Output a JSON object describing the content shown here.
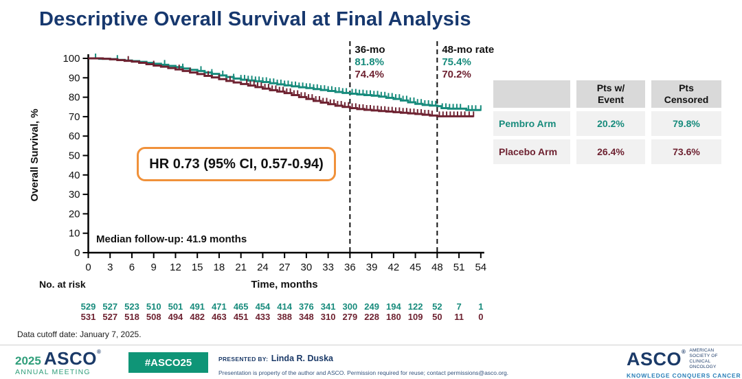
{
  "slide": {
    "title": "Descriptive Overall Survival at Final Analysis",
    "data_cutoff": "Data cutoff date: January 7, 2025."
  },
  "colors": {
    "navy": "#17386e",
    "teal": "#178b7c",
    "maroon": "#6e2231",
    "orange": "#f0913a",
    "badge_green": "#0f9577",
    "meeting_green": "#2f9e7a",
    "tagline_blue": "#2a7fb8",
    "table_header_gray": "#d9d9d9",
    "table_row_gray": "#f1f1f1"
  },
  "chart_data": {
    "type": "line",
    "subtype": "kaplan-meier-step",
    "title": "",
    "xlabel": "Time, months",
    "ylabel": "Overall Survival, %",
    "xlim": [
      0,
      54
    ],
    "ylim": [
      0,
      100
    ],
    "grid": false,
    "x_ticks": [
      0,
      3,
      6,
      9,
      12,
      15,
      18,
      21,
      24,
      27,
      30,
      33,
      36,
      39,
      42,
      45,
      48,
      51,
      54
    ],
    "y_ticks": [
      0,
      10,
      20,
      30,
      40,
      50,
      60,
      70,
      80,
      90,
      100
    ],
    "hr_label": "HR 0.73 (95% CI, 0.57-0.94)",
    "median_followup": "Median follow-up: 41.9 months",
    "no_at_risk_label": "No. at risk",
    "annotations": [
      {
        "time": 36,
        "title": "36-mo",
        "values": [
          {
            "series": "pembro",
            "text": "81.8%"
          },
          {
            "series": "placebo",
            "text": "74.4%"
          }
        ]
      },
      {
        "time": 48,
        "title": "48-mo rate",
        "values": [
          {
            "series": "pembro",
            "text": "75.4%"
          },
          {
            "series": "placebo",
            "text": "70.2%"
          }
        ]
      }
    ],
    "series": [
      {
        "name": "Pembro Arm",
        "key": "pembro",
        "color": "#178b7c",
        "rate_36mo": 81.8,
        "rate_48mo": 75.4,
        "points": [
          [
            0,
            100
          ],
          [
            1.5,
            99.8
          ],
          [
            3,
            99.6
          ],
          [
            4,
            99.2
          ],
          [
            5,
            98.9
          ],
          [
            6,
            98.6
          ],
          [
            7,
            98.2
          ],
          [
            8,
            97.7
          ],
          [
            9,
            97.2
          ],
          [
            10,
            96.7
          ],
          [
            11,
            96.1
          ],
          [
            12,
            95.5
          ],
          [
            13,
            94.8
          ],
          [
            14,
            94.1
          ],
          [
            15,
            93.5
          ],
          [
            16,
            92.7
          ],
          [
            17,
            92.0
          ],
          [
            18,
            91.2
          ],
          [
            19,
            90.4
          ],
          [
            20,
            89.6
          ],
          [
            21,
            89.0
          ],
          [
            22,
            88.6
          ],
          [
            23,
            88.2
          ],
          [
            24,
            87.8
          ],
          [
            25,
            87.2
          ],
          [
            26,
            86.6
          ],
          [
            27,
            86.1
          ],
          [
            28,
            85.6
          ],
          [
            29,
            85.1
          ],
          [
            30,
            84.7
          ],
          [
            31,
            84.2
          ],
          [
            32,
            83.7
          ],
          [
            33,
            83.2
          ],
          [
            34,
            82.7
          ],
          [
            35,
            82.2
          ],
          [
            36,
            81.8
          ],
          [
            37,
            81.4
          ],
          [
            38,
            81.1
          ],
          [
            39,
            80.8
          ],
          [
            40,
            80.3
          ],
          [
            41,
            79.7
          ],
          [
            42,
            79.1
          ],
          [
            43,
            78.3
          ],
          [
            44,
            77.4
          ],
          [
            45,
            76.6
          ],
          [
            46,
            76.0
          ],
          [
            47,
            75.7
          ],
          [
            48,
            75.4
          ],
          [
            48.6,
            74.4
          ],
          [
            49.5,
            74.1
          ],
          [
            52,
            73.4
          ],
          [
            54,
            73.4
          ]
        ],
        "censor_times": [
          1,
          4,
          10.5,
          13,
          15.5,
          17,
          18.5,
          20,
          21,
          21.5,
          22,
          22.5,
          23,
          23.5,
          24,
          24.5,
          25,
          25.5,
          26,
          26.5,
          27,
          27.5,
          28,
          28.5,
          29,
          29.5,
          30,
          30.5,
          31,
          31.5,
          32,
          32.5,
          33,
          33.5,
          34,
          34.5,
          35,
          35.5,
          36.3,
          36.8,
          37.3,
          37.8,
          38.3,
          38.8,
          39.3,
          39.8,
          40.3,
          40.8,
          41.3,
          41.8,
          42.3,
          42.8,
          43.3,
          43.8,
          44.3,
          44.8,
          45.3,
          45.8,
          46.3,
          46.8,
          47.3,
          47.8,
          48.7,
          49.2,
          49.7,
          50.2,
          50.7,
          51.2,
          52.3,
          52.8,
          53.3,
          54
        ],
        "at_risk": [
          529,
          527,
          523,
          510,
          501,
          491,
          471,
          465,
          454,
          414,
          376,
          341,
          300,
          249,
          194,
          122,
          52,
          7,
          1
        ]
      },
      {
        "name": "Placebo Arm",
        "key": "placebo",
        "color": "#6e2231",
        "rate_36mo": 74.4,
        "rate_48mo": 70.2,
        "points": [
          [
            0,
            100
          ],
          [
            2,
            99.8
          ],
          [
            3,
            99.5
          ],
          [
            4,
            99.1
          ],
          [
            5,
            98.7
          ],
          [
            6,
            98.3
          ],
          [
            7,
            97.7
          ],
          [
            8,
            97.0
          ],
          [
            9,
            96.3
          ],
          [
            10,
            95.7
          ],
          [
            11,
            95.0
          ],
          [
            12,
            94.3
          ],
          [
            13,
            93.5
          ],
          [
            14,
            92.7
          ],
          [
            15,
            91.9
          ],
          [
            16,
            91.0
          ],
          [
            17,
            90.2
          ],
          [
            18,
            89.3
          ],
          [
            19,
            88.4
          ],
          [
            20,
            87.6
          ],
          [
            21,
            86.8
          ],
          [
            22,
            86.0
          ],
          [
            23,
            85.2
          ],
          [
            24,
            84.4
          ],
          [
            25,
            83.6
          ],
          [
            26,
            82.9
          ],
          [
            27,
            82.1
          ],
          [
            28,
            81.1
          ],
          [
            29,
            80.1
          ],
          [
            30,
            79.1
          ],
          [
            31,
            78.1
          ],
          [
            32,
            77.2
          ],
          [
            33,
            76.4
          ],
          [
            34,
            75.6
          ],
          [
            35,
            75.0
          ],
          [
            36,
            74.4
          ],
          [
            37,
            73.9
          ],
          [
            38,
            73.5
          ],
          [
            39,
            73.2
          ],
          [
            40,
            72.9
          ],
          [
            41,
            72.6
          ],
          [
            42,
            72.3
          ],
          [
            43,
            72.0
          ],
          [
            44,
            71.7
          ],
          [
            45,
            71.4
          ],
          [
            46,
            71.0
          ],
          [
            47,
            70.6
          ],
          [
            48,
            70.2
          ],
          [
            53,
            70.2
          ]
        ],
        "censor_times": [
          5.5,
          9,
          12.5,
          14,
          16.5,
          18,
          19.5,
          21.8,
          22.3,
          22.8,
          23.3,
          23.8,
          24.3,
          24.8,
          25.3,
          25.8,
          26.3,
          26.8,
          27.3,
          27.8,
          28.3,
          28.8,
          29.3,
          29.8,
          30.3,
          30.8,
          31.3,
          31.8,
          32.3,
          32.8,
          33.3,
          33.8,
          34.3,
          34.8,
          35.3,
          35.8,
          36.3,
          36.8,
          37.3,
          37.8,
          38.3,
          38.8,
          39.3,
          39.8,
          40.3,
          40.8,
          41.3,
          41.8,
          42.3,
          42.8,
          43.3,
          43.8,
          44.3,
          44.8,
          45.3,
          45.8,
          46.3,
          46.8,
          47.3,
          48.3,
          48.8,
          49.3,
          49.8,
          50.3,
          50.8,
          51.3,
          51.8,
          52.4,
          53
        ],
        "at_risk": [
          531,
          527,
          518,
          508,
          494,
          482,
          463,
          451,
          433,
          388,
          348,
          310,
          279,
          228,
          180,
          109,
          50,
          11,
          0
        ]
      }
    ]
  },
  "table": {
    "headers": [
      {
        "l1": "",
        "l2": ""
      },
      {
        "l1": "Pts w/",
        "l2": "Event"
      },
      {
        "l1": "Pts",
        "l2": "Censored"
      }
    ],
    "rows": [
      {
        "label": "Pembro Arm",
        "event": "20.2%",
        "censored": "79.8%"
      },
      {
        "label": "Placebo Arm",
        "event": "26.4%",
        "censored": "73.6%"
      }
    ]
  },
  "footer": {
    "logo_year": "2025",
    "logo_asco": "ASCO",
    "logo_reg": "®",
    "logo_meeting": "ANNUAL MEETING",
    "hashtag": "#ASCO25",
    "presented_by_label": "PRESENTED BY:",
    "presenter": "Linda R. Duska",
    "disclaimer": "Presentation is property of the author and ASCO. Permission required for reuse; contact permissions@asco.org.",
    "asco_logo": "ASCO",
    "asco_reg": "®",
    "society_line1": "AMERICAN SOCIETY OF",
    "society_line2": "CLINICAL ONCOLOGY",
    "tagline": "KNOWLEDGE CONQUERS CANCER"
  }
}
